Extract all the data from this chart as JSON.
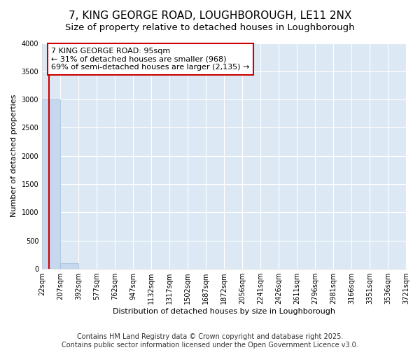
{
  "title": "7, KING GEORGE ROAD, LOUGHBOROUGH, LE11 2NX",
  "subtitle": "Size of property relative to detached houses in Loughborough",
  "xlabel": "Distribution of detached houses by size in Loughborough",
  "ylabel": "Number of detached properties",
  "bar_color": "#c5d8ee",
  "bar_edge_color": "#a0bcd8",
  "background_color": "#dce9f5",
  "grid_color": "#ffffff",
  "property_size": 95,
  "property_line_color": "#cc0000",
  "annotation_text": "7 KING GEORGE ROAD: 95sqm\n← 31% of detached houses are smaller (968)\n69% of semi-detached houses are larger (2,135) →",
  "annotation_box_color": "#cc0000",
  "bins": [
    22,
    207,
    392,
    577,
    762,
    947,
    1132,
    1317,
    1502,
    1687,
    1872,
    2056,
    2241,
    2426,
    2611,
    2796,
    2981,
    3166,
    3351,
    3536,
    3721
  ],
  "bin_heights": [
    3000,
    100,
    0,
    0,
    0,
    0,
    0,
    0,
    0,
    0,
    0,
    0,
    0,
    0,
    0,
    0,
    0,
    0,
    0,
    0
  ],
  "ylim": [
    0,
    4000
  ],
  "yticks": [
    0,
    500,
    1000,
    1500,
    2000,
    2500,
    3000,
    3500,
    4000
  ],
  "footer_text": "Contains HM Land Registry data © Crown copyright and database right 2025.\nContains public sector information licensed under the Open Government Licence v3.0.",
  "title_fontsize": 11,
  "subtitle_fontsize": 9.5,
  "tick_fontsize": 7,
  "label_fontsize": 8,
  "footer_fontsize": 7
}
